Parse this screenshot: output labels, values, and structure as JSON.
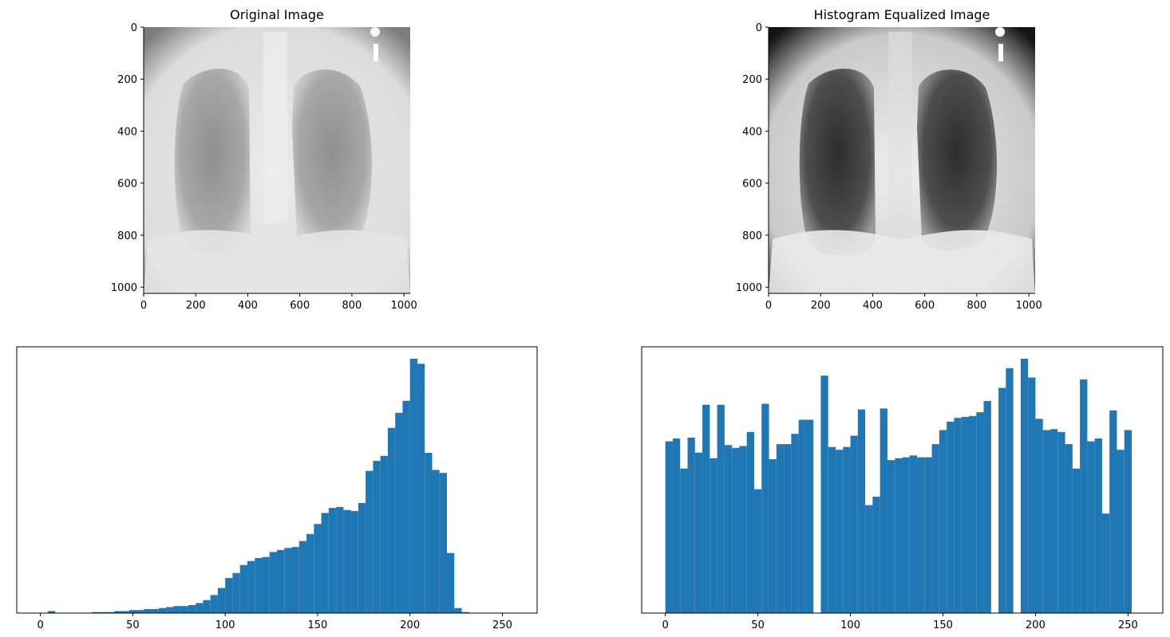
{
  "chart_data": [
    {
      "type": "image",
      "title": "Original Image",
      "image": "chest-xray-original",
      "xlim": [
        0,
        1024
      ],
      "ylim": [
        1024,
        0
      ],
      "xticks": [
        "0",
        "200",
        "400",
        "600",
        "800",
        "1000"
      ],
      "yticks": [
        "0",
        "200",
        "400",
        "600",
        "800",
        "1000"
      ]
    },
    {
      "type": "image",
      "title": "Histogram Equalized Image",
      "image": "chest-xray-equalized",
      "xlim": [
        0,
        1024
      ],
      "ylim": [
        1024,
        0
      ],
      "xticks": [
        "0",
        "200",
        "400",
        "600",
        "800",
        "1000"
      ],
      "yticks": [
        "0",
        "200",
        "400",
        "600",
        "800",
        "1000"
      ]
    },
    {
      "type": "bar",
      "title": "",
      "bins": 64,
      "xlim": [
        -12.8,
        268.8
      ],
      "xticks": [
        "0",
        "50",
        "100",
        "150",
        "200",
        "250"
      ],
      "color": "#1f77b4",
      "values": [
        0,
        2,
        0,
        0,
        0,
        0,
        0,
        1,
        1,
        1,
        2,
        2,
        3,
        3,
        4,
        4,
        5,
        6,
        7,
        7,
        8,
        10,
        13,
        18,
        25,
        35,
        40,
        48,
        52,
        55,
        56,
        61,
        63,
        65,
        66,
        72,
        79,
        89,
        100,
        105,
        106,
        103,
        102,
        110,
        142,
        152,
        157,
        185,
        200,
        212,
        254,
        249,
        160,
        143,
        140,
        60,
        5,
        1,
        0,
        0,
        0,
        0,
        0,
        0
      ]
    },
    {
      "type": "bar",
      "title": "",
      "bins": 64,
      "xlim": [
        -12.8,
        268.8
      ],
      "xticks": [
        "0",
        "50",
        "100",
        "150",
        "200",
        "250"
      ],
      "color": "#1f77b4",
      "values": [
        183,
        186,
        154,
        187,
        171,
        222,
        165,
        222,
        179,
        176,
        178,
        193,
        132,
        223,
        164,
        180,
        180,
        191,
        206,
        206,
        0,
        253,
        177,
        174,
        177,
        189,
        217,
        115,
        124,
        218,
        163,
        165,
        166,
        168,
        166,
        166,
        180,
        195,
        204,
        208,
        209,
        210,
        214,
        226,
        0,
        240,
        261,
        0,
        271,
        251,
        207,
        195,
        196,
        193,
        180,
        154,
        249,
        183,
        186,
        106,
        216,
        174,
        195,
        0
      ]
    }
  ]
}
